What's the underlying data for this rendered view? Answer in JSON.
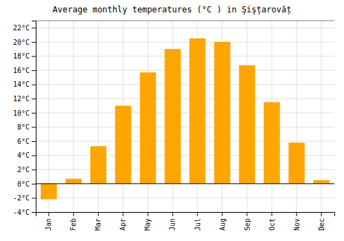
{
  "chart_data": {
    "type": "bar",
    "title": "Average monthly temperatures (°C ) in Şişțarovăț",
    "categories": [
      "Jan",
      "Feb",
      "Mar",
      "Apr",
      "May",
      "Jun",
      "Jul",
      "Aug",
      "Sep",
      "Oct",
      "Nov",
      "Dec"
    ],
    "values": [
      -2.2,
      0.7,
      5.3,
      11.0,
      15.7,
      19.0,
      20.5,
      20.0,
      16.7,
      11.5,
      5.8,
      0.5
    ],
    "color": "#FFA500",
    "ylim": [
      -4,
      23
    ],
    "yticks": [
      {
        "value": -4,
        "label": "-4°C"
      },
      {
        "value": -2,
        "label": "-2°C"
      },
      {
        "value": 0,
        "label": "0°C"
      },
      {
        "value": 2,
        "label": "2°C"
      },
      {
        "value": 4,
        "label": "4°C"
      },
      {
        "value": 6,
        "label": "6°C"
      },
      {
        "value": 8,
        "label": "8°C"
      },
      {
        "value": 10,
        "label": "10°C"
      },
      {
        "value": 12,
        "label": "12°C"
      },
      {
        "value": 14,
        "label": "14°C"
      },
      {
        "value": 16,
        "label": "16°C"
      },
      {
        "value": 18,
        "label": "18°C"
      },
      {
        "value": 20,
        "label": "20°C"
      },
      {
        "value": 22,
        "label": "22°C"
      }
    ],
    "grid": true
  }
}
